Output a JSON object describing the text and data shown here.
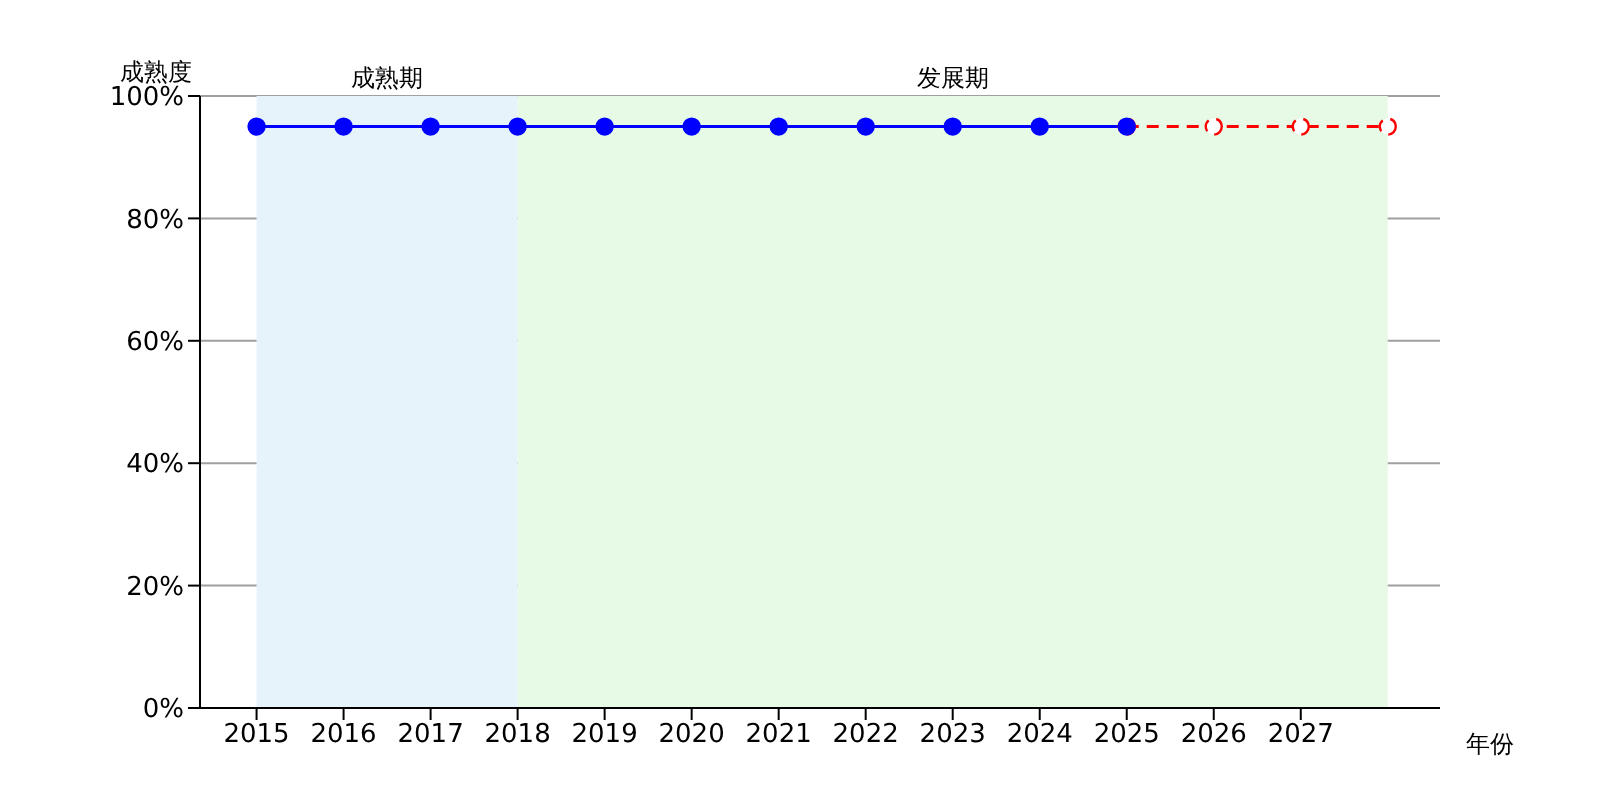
{
  "chart_data": {
    "type": "line",
    "xlabel": "年份",
    "ylabel": "成熟度",
    "xlim": [
      2014.35,
      2028.6
    ],
    "xticks": [
      2015,
      2016,
      2017,
      2018,
      2019,
      2020,
      2021,
      2022,
      2023,
      2024,
      2025,
      2026,
      2027
    ],
    "ylim": [
      0,
      100
    ],
    "yticks": [
      {
        "value": 0,
        "label": "0%"
      },
      {
        "value": 20,
        "label": "20%"
      },
      {
        "value": 40,
        "label": "40%"
      },
      {
        "value": 60,
        "label": "60%"
      },
      {
        "value": 80,
        "label": "80%"
      },
      {
        "value": 100,
        "label": "100%"
      }
    ],
    "grid": "y",
    "marker": "circle",
    "bands": [
      {
        "axis": "x",
        "from": 2015,
        "to": 2018,
        "label": "成熟期",
        "color": "#e6f3fa"
      },
      {
        "axis": "x",
        "from": 2018,
        "to": 2028,
        "label": "发展期",
        "color": "#e6fae6"
      }
    ],
    "series": [
      {
        "color": "#0000ff",
        "line_style": "solid",
        "x": [
          2015,
          2016,
          2017,
          2018,
          2019,
          2020,
          2021,
          2022,
          2023,
          2024,
          2025
        ],
        "values": [
          95,
          95,
          95,
          95,
          95,
          95,
          95,
          95,
          95,
          95,
          95
        ]
      },
      {
        "color": "#ff0000",
        "line_style": "dashed",
        "x": [
          2025,
          2026,
          2027,
          2028
        ],
        "values": [
          95,
          95,
          95,
          95
        ]
      }
    ]
  }
}
